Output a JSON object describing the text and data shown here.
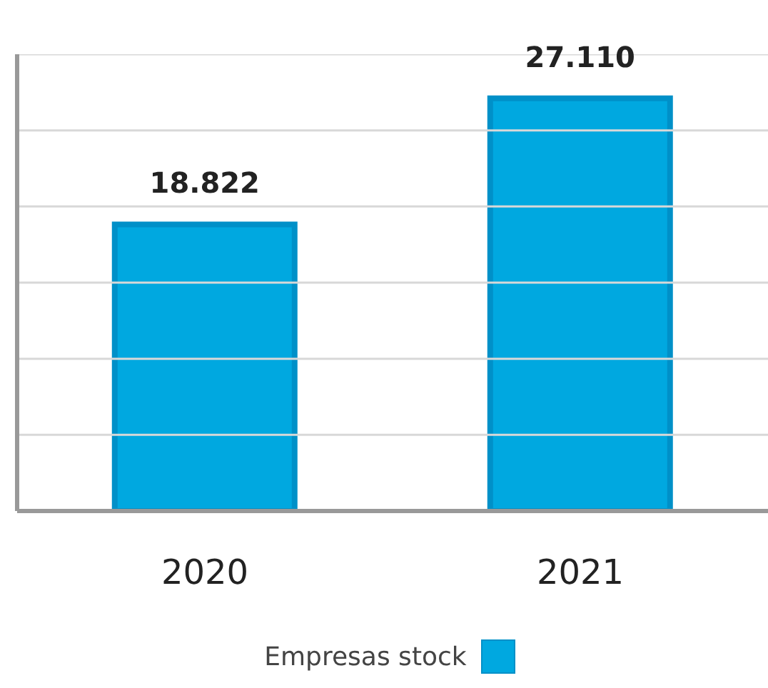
{
  "chart_data": {
    "type": "bar",
    "categories": [
      "2020",
      "2021"
    ],
    "series": [
      {
        "name": "Empresas stock",
        "color": "#00a8e0",
        "values": [
          18822,
          27110
        ],
        "value_labels": [
          "18.822",
          "27.110"
        ]
      }
    ],
    "ylim": [
      0,
      30000
    ],
    "yticks": [
      {
        "value": 0,
        "label": null
      },
      {
        "value": 5000,
        "label": null
      },
      {
        "value": 10000,
        "label": null
      },
      {
        "value": 15000,
        "label": null
      },
      {
        "value": 20000,
        "label": null
      },
      {
        "value": 25000,
        "label": null
      },
      {
        "value": 30000,
        "label": null
      }
    ],
    "tick_labels": "x",
    "grid": "y",
    "legend": "bottom"
  }
}
